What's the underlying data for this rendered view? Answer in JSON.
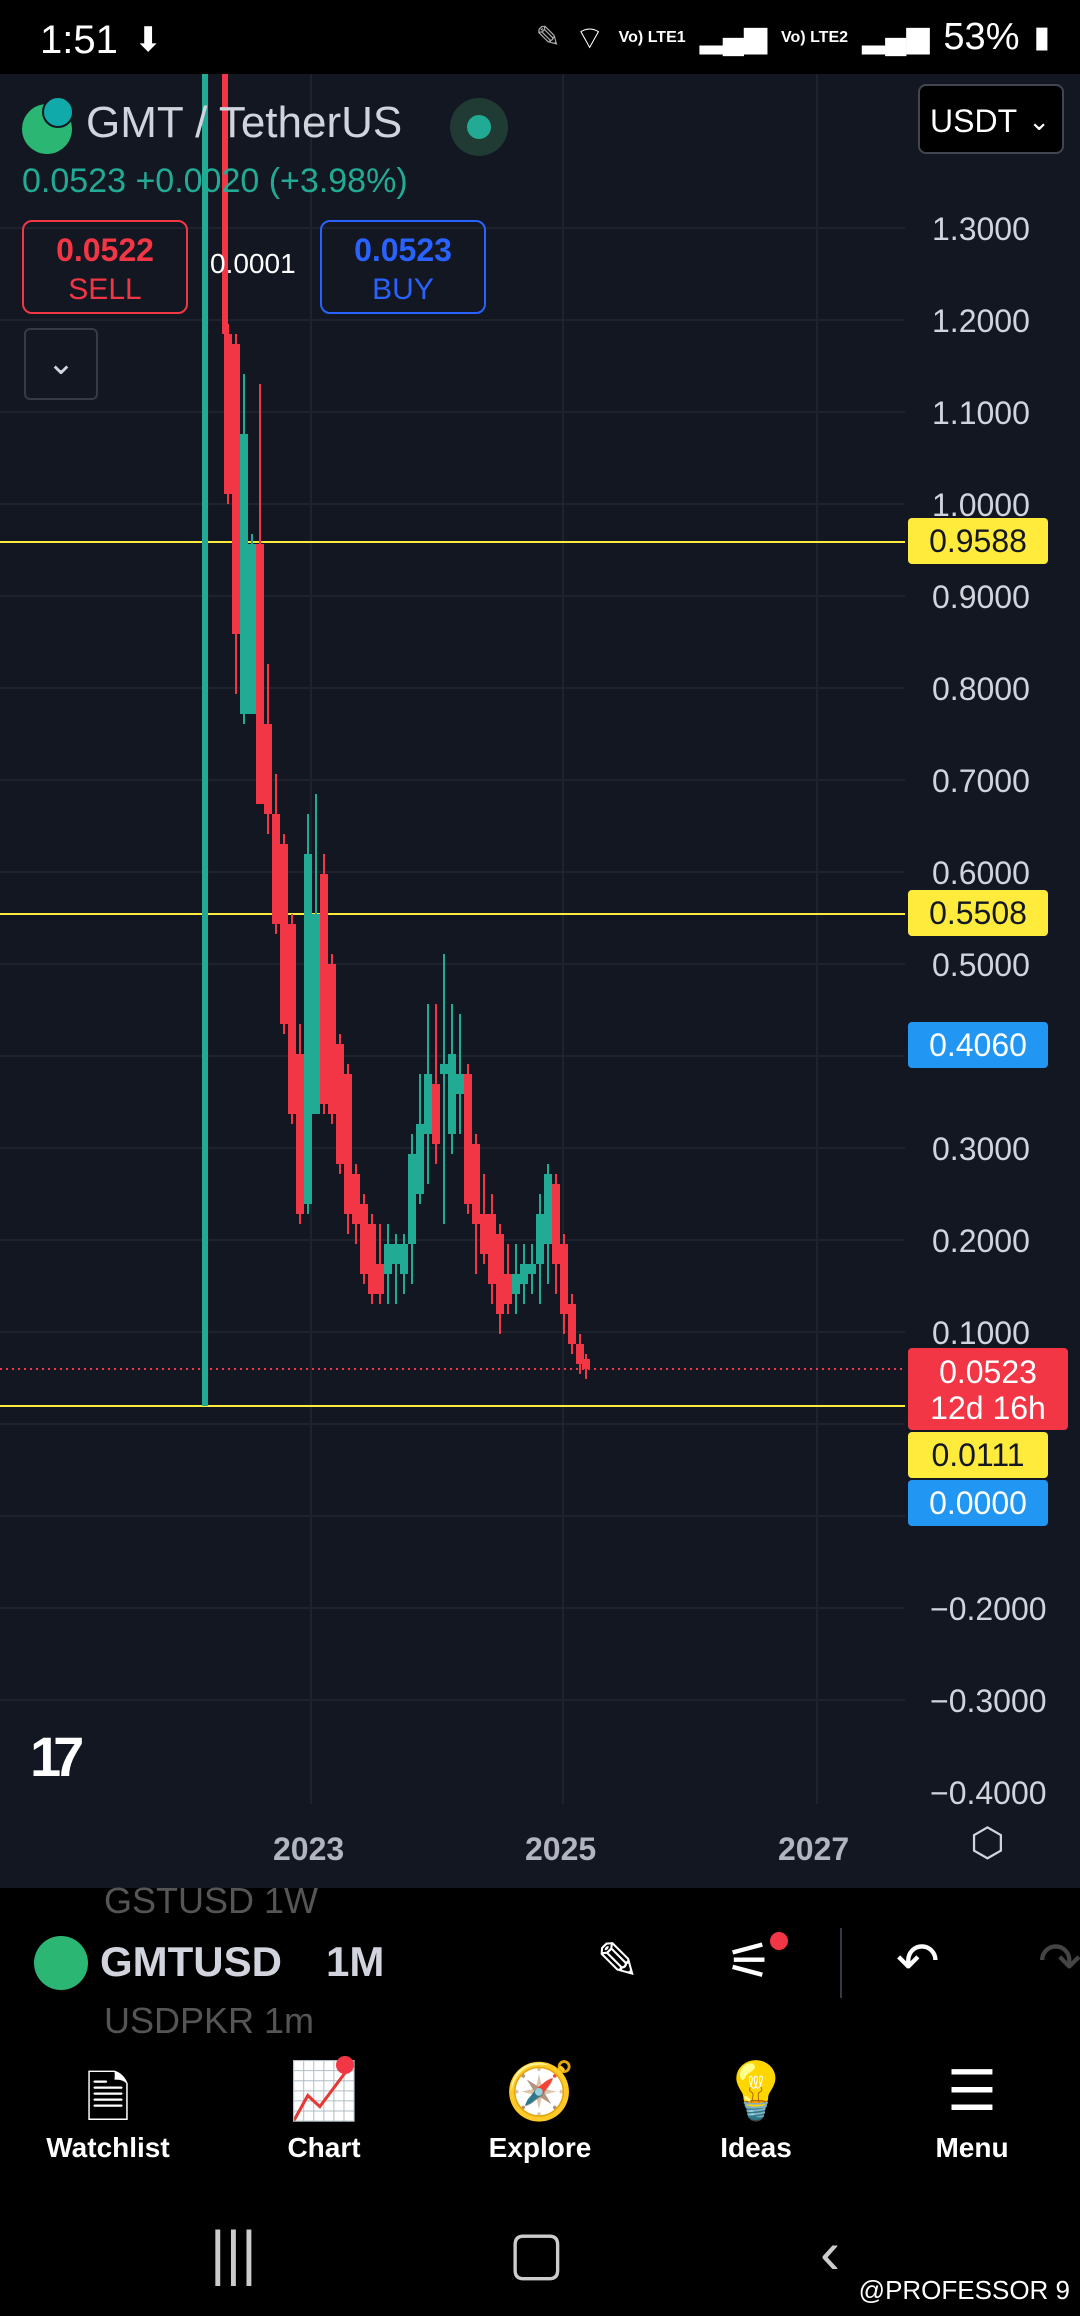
{
  "status_bar": {
    "time": "1:51",
    "battery": "53%",
    "sim1": "Vo) LTE1",
    "sim2": "Vo) LTE2"
  },
  "header": {
    "symbol_title": "GMT / TetherUS",
    "price_line": "0.0523  +0.0020 (+3.98%)",
    "sell_price": "0.0522",
    "sell_label": "SELL",
    "buy_price": "0.0523",
    "buy_label": "BUY",
    "spread": "0.0001",
    "currency": "USDT"
  },
  "axis": {
    "y_labels": [
      "1.3000",
      "1.2000",
      "1.1000",
      "1.0000",
      "0.9000",
      "0.8000",
      "0.7000",
      "0.6000",
      "0.5000",
      "0.3000",
      "0.2000",
      "0.1000",
      "−0.2000",
      "−0.3000",
      "−0.4000"
    ],
    "x_labels": [
      "2023",
      "2025",
      "2027"
    ]
  },
  "badges": {
    "level1": "0.9588",
    "level2": "0.5508",
    "blue1": "0.4060",
    "current_price": "0.0523",
    "countdown": "12d 16h",
    "level3": "0.0111",
    "blue2": "0.0000"
  },
  "colors": {
    "up": "#22ab94",
    "down": "#f23645",
    "level": "#ffeb3b",
    "bg": "#131722"
  },
  "toolbar": {
    "ghost_top": "GSTUSD   1W",
    "symbol": "GMTUSD",
    "interval": "1M",
    "ghost_bottom": "USDPKR   1m"
  },
  "nav": {
    "watchlist": "Watchlist",
    "chart": "Chart",
    "explore": "Explore",
    "ideas": "Ideas",
    "menu": "Menu"
  },
  "watermark": "@PROFESSOR 9"
}
